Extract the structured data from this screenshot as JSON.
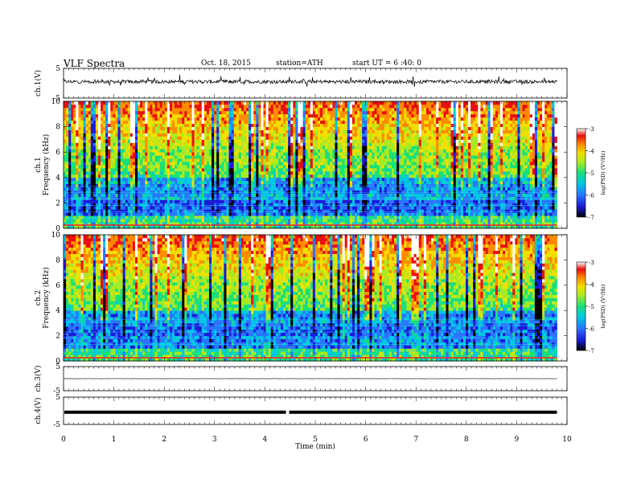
{
  "header": {
    "title": "VLF  Spectra",
    "date": "Oct. 18, 2015",
    "station": "station=ATH",
    "start": "start  UT =   6 :40: 0"
  },
  "chart_data": {
    "type": "spectrogram",
    "x_axis": {
      "label": "Time  (min)",
      "range": [
        0,
        10
      ],
      "data_end": 9.8,
      "ticks": [
        "0",
        "1",
        "2",
        "3",
        "4",
        "5",
        "6",
        "7",
        "8",
        "9",
        "10"
      ]
    },
    "panels": [
      {
        "kind": "waveform",
        "ylabel": "ch.1(V)",
        "ylim": [
          -5,
          5
        ],
        "yticks": [
          "5",
          "-5"
        ],
        "baseline": 0.5,
        "noise_amplitude": 0.6,
        "spike_amplitude": 2.0
      },
      {
        "kind": "spectrogram",
        "ylabel_top": "ch.1",
        "ylabel": "Frequency  (kHz)",
        "ylim": [
          0,
          10
        ],
        "yticks": [
          "0",
          "2",
          "4",
          "6",
          "8",
          "10"
        ],
        "colorbar": {
          "label": "log(PSD) (V²/Hz)",
          "range": [
            -7,
            -3
          ],
          "ticks": [
            "-3",
            "-4",
            "-5",
            "-6",
            "-7"
          ]
        }
      },
      {
        "kind": "spectrogram",
        "ylabel_top": "ch.2",
        "ylabel": "Frequency  (kHz)",
        "ylim": [
          0,
          10
        ],
        "yticks": [
          "0",
          "2",
          "4",
          "6",
          "8",
          "10"
        ],
        "colorbar": {
          "label": "log(PSD) (V²/Hz)",
          "range": [
            -7,
            -3
          ],
          "ticks": [
            "-3",
            "-4",
            "-5",
            "-6",
            "-7"
          ]
        }
      },
      {
        "kind": "waveform",
        "ylabel": "ch.3(V)",
        "ylim": [
          -5,
          5
        ],
        "yticks": [
          "5",
          "-5"
        ],
        "baseline": 0,
        "noise_amplitude": 0.05,
        "spike_amplitude": 0.1
      },
      {
        "kind": "waveform",
        "ylabel": "ch.4(V)",
        "ylim": [
          -5,
          5
        ],
        "yticks": [
          "5",
          "-5"
        ],
        "baseline": -0.5,
        "noise_amplitude": 0,
        "spike_amplitude": 0,
        "thick": true,
        "gap_at_min": 4.45
      }
    ],
    "colormap": [
      "#000000",
      "#1b1bd9",
      "#2a74ff",
      "#00c8e0",
      "#19e07a",
      "#a6ea24",
      "#f0e000",
      "#ff8c00",
      "#e81010",
      "#ffffff"
    ]
  }
}
